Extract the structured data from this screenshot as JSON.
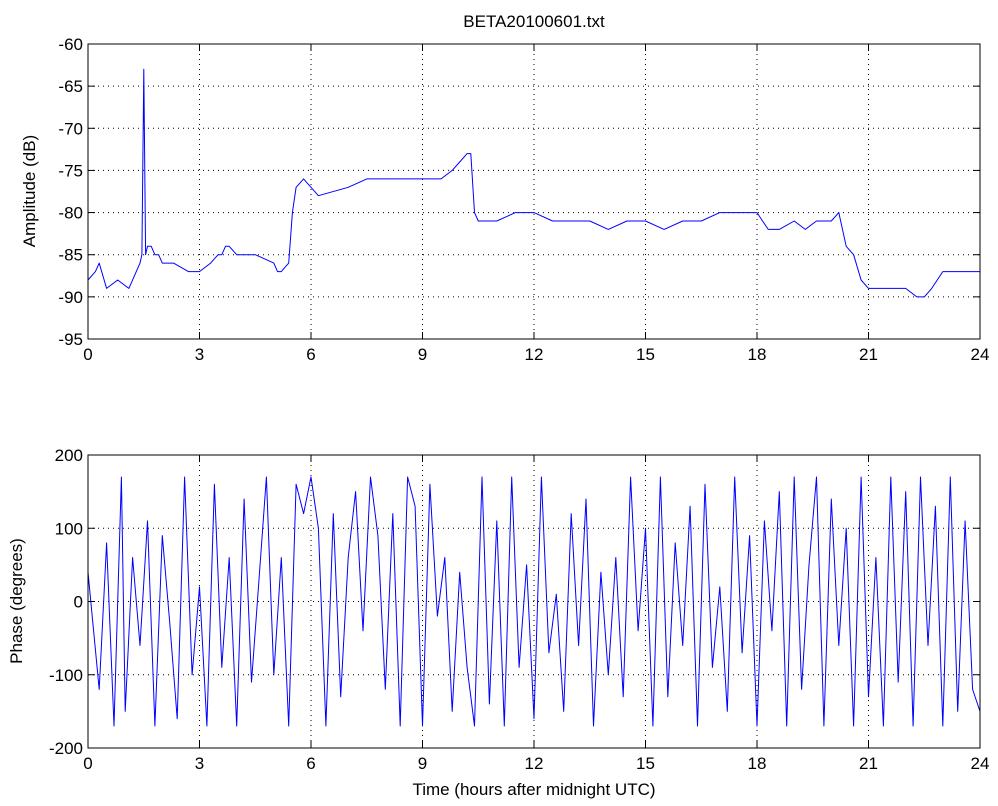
{
  "chart_data": [
    {
      "type": "line",
      "title": "BETA20100601.txt",
      "xlabel": "",
      "ylabel": "Amplitude (dB)",
      "xlim": [
        0,
        24
      ],
      "ylim": [
        -95,
        -60
      ],
      "xticks": [
        0,
        3,
        6,
        9,
        12,
        15,
        18,
        21,
        24
      ],
      "yticks": [
        -95,
        -90,
        -85,
        -80,
        -75,
        -70,
        -65,
        -60
      ],
      "grid": true,
      "series_color": "#0000ff",
      "series": [
        {
          "x": [
            0.0,
            0.2,
            0.3,
            0.5,
            0.8,
            1.1,
            1.4,
            1.45,
            1.5,
            1.55,
            1.6,
            1.7,
            1.8,
            1.9,
            2.0,
            2.3,
            2.7,
            3.0,
            3.3,
            3.5,
            3.6,
            3.7,
            3.8,
            4.0,
            4.5,
            5.0,
            5.1,
            5.2,
            5.4,
            5.5,
            5.6,
            5.8,
            6.2,
            7.0,
            7.5,
            8.0,
            8.5,
            9.0,
            9.5,
            9.8,
            10.0,
            10.2,
            10.3,
            10.4,
            10.5,
            10.8,
            11.0,
            11.5,
            12.0,
            12.5,
            13.0,
            13.5,
            14.0,
            14.5,
            15.0,
            15.5,
            16.0,
            16.5,
            17.0,
            17.5,
            18.0,
            18.3,
            18.6,
            19.0,
            19.3,
            19.6,
            19.8,
            20.0,
            20.2,
            20.4,
            20.6,
            20.8,
            21.0,
            21.5,
            22.0,
            22.3,
            22.5,
            22.7,
            23.0,
            23.5,
            24.0
          ],
          "y": [
            -88,
            -87,
            -86,
            -89,
            -88,
            -89,
            -86,
            -85,
            -63,
            -85,
            -84,
            -84,
            -85,
            -85,
            -86,
            -86,
            -87,
            -87,
            -86,
            -85,
            -85,
            -84,
            -84,
            -85,
            -85,
            -86,
            -87,
            -87,
            -86,
            -80,
            -77,
            -76,
            -78,
            -77,
            -76,
            -76,
            -76,
            -76,
            -76,
            -75,
            -74,
            -73,
            -73,
            -80,
            -81,
            -81,
            -81,
            -80,
            -80,
            -81,
            -81,
            -81,
            -82,
            -81,
            -81,
            -82,
            -81,
            -81,
            -80,
            -80,
            -80,
            -82,
            -82,
            -81,
            -82,
            -81,
            -81,
            -81,
            -80,
            -84,
            -85,
            -88,
            -89,
            -89,
            -89,
            -90,
            -90,
            -89,
            -87,
            -87,
            -87
          ]
        }
      ]
    },
    {
      "type": "line",
      "title": "",
      "xlabel": "Time (hours after midnight UTC)",
      "ylabel": "Phase (degrees)",
      "xlim": [
        0,
        24
      ],
      "ylim": [
        -200,
        200
      ],
      "xticks": [
        0,
        3,
        6,
        9,
        12,
        15,
        18,
        21,
        24
      ],
      "yticks": [
        -200,
        -100,
        0,
        100,
        200
      ],
      "grid": true,
      "series_color": "#0000ff",
      "series": [
        {
          "x": [
            0.0,
            0.3,
            0.5,
            0.7,
            0.9,
            1.0,
            1.2,
            1.4,
            1.6,
            1.8,
            2.0,
            2.2,
            2.4,
            2.6,
            2.8,
            3.0,
            3.2,
            3.4,
            3.6,
            3.8,
            4.0,
            4.2,
            4.4,
            4.6,
            4.8,
            5.0,
            5.2,
            5.4,
            5.6,
            5.8,
            6.0,
            6.2,
            6.4,
            6.6,
            6.8,
            7.0,
            7.2,
            7.4,
            7.6,
            7.8,
            8.0,
            8.2,
            8.4,
            8.6,
            8.8,
            9.0,
            9.2,
            9.4,
            9.6,
            9.8,
            10.0,
            10.2,
            10.4,
            10.6,
            10.8,
            11.0,
            11.2,
            11.4,
            11.6,
            11.8,
            12.0,
            12.2,
            12.4,
            12.6,
            12.8,
            13.0,
            13.2,
            13.4,
            13.6,
            13.8,
            14.0,
            14.2,
            14.4,
            14.6,
            14.8,
            15.0,
            15.2,
            15.4,
            15.6,
            15.8,
            16.0,
            16.2,
            16.4,
            16.6,
            16.8,
            17.0,
            17.2,
            17.4,
            17.6,
            17.8,
            18.0,
            18.2,
            18.4,
            18.6,
            18.8,
            19.0,
            19.2,
            19.4,
            19.6,
            19.8,
            20.0,
            20.2,
            20.4,
            20.6,
            20.8,
            21.0,
            21.2,
            21.4,
            21.6,
            21.8,
            22.0,
            22.2,
            22.4,
            22.6,
            22.8,
            23.0,
            23.2,
            23.4,
            23.6,
            23.8,
            24.0
          ],
          "y": [
            40,
            -120,
            80,
            -170,
            170,
            -150,
            60,
            -60,
            110,
            -170,
            90,
            -30,
            -160,
            170,
            -100,
            20,
            -170,
            160,
            -90,
            60,
            -170,
            140,
            -110,
            30,
            170,
            -100,
            60,
            -170,
            160,
            120,
            170,
            100,
            -170,
            120,
            -130,
            60,
            150,
            -40,
            170,
            90,
            -120,
            120,
            -170,
            170,
            130,
            -170,
            160,
            -20,
            60,
            -150,
            40,
            -90,
            -170,
            170,
            -140,
            110,
            -170,
            170,
            -90,
            50,
            -160,
            170,
            -70,
            10,
            -150,
            120,
            -60,
            140,
            -170,
            40,
            -100,
            60,
            -130,
            170,
            -40,
            100,
            -170,
            170,
            -130,
            80,
            -60,
            130,
            -170,
            160,
            -90,
            20,
            -150,
            170,
            -70,
            90,
            -170,
            110,
            -40,
            150,
            -170,
            170,
            -120,
            50,
            170,
            -170,
            140,
            -60,
            100,
            -170,
            170,
            -130,
            60,
            -170,
            170,
            -110,
            150,
            -170,
            170,
            -60,
            130,
            -170,
            170,
            -150,
            110,
            -120,
            -150
          ]
        }
      ]
    }
  ]
}
